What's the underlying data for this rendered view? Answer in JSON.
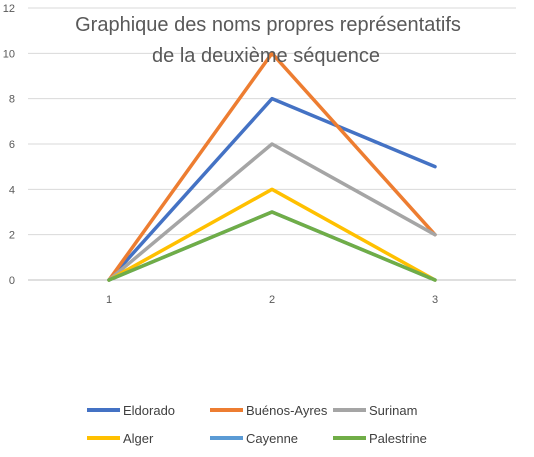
{
  "chart_data": {
    "type": "line",
    "title_lines": [
      "Graphique des noms propres représentatifs",
      "de la deuxième séquence"
    ],
    "categories": [
      "1",
      "2",
      "3"
    ],
    "ylim": [
      0,
      12
    ],
    "yticks": [
      0,
      2,
      4,
      6,
      8,
      10,
      12
    ],
    "grid": true,
    "legend_position": "bottom",
    "series": [
      {
        "name": "Eldorado",
        "values": [
          0,
          8,
          5
        ],
        "color": "#4472C4"
      },
      {
        "name": "Buénos-Ayres",
        "values": [
          0,
          10,
          2
        ],
        "color": "#ED7D31"
      },
      {
        "name": "Surinam",
        "values": [
          0,
          6,
          2
        ],
        "color": "#A5A5A5"
      },
      {
        "name": "Alger",
        "values": [
          0,
          4,
          0
        ],
        "color": "#FFC000"
      },
      {
        "name": "Cayenne",
        "values": [
          0,
          3,
          0
        ],
        "color": "#5B9BD5"
      },
      {
        "name": "Palestrine",
        "values": [
          0,
          3,
          0
        ],
        "color": "#70AD47"
      }
    ]
  }
}
